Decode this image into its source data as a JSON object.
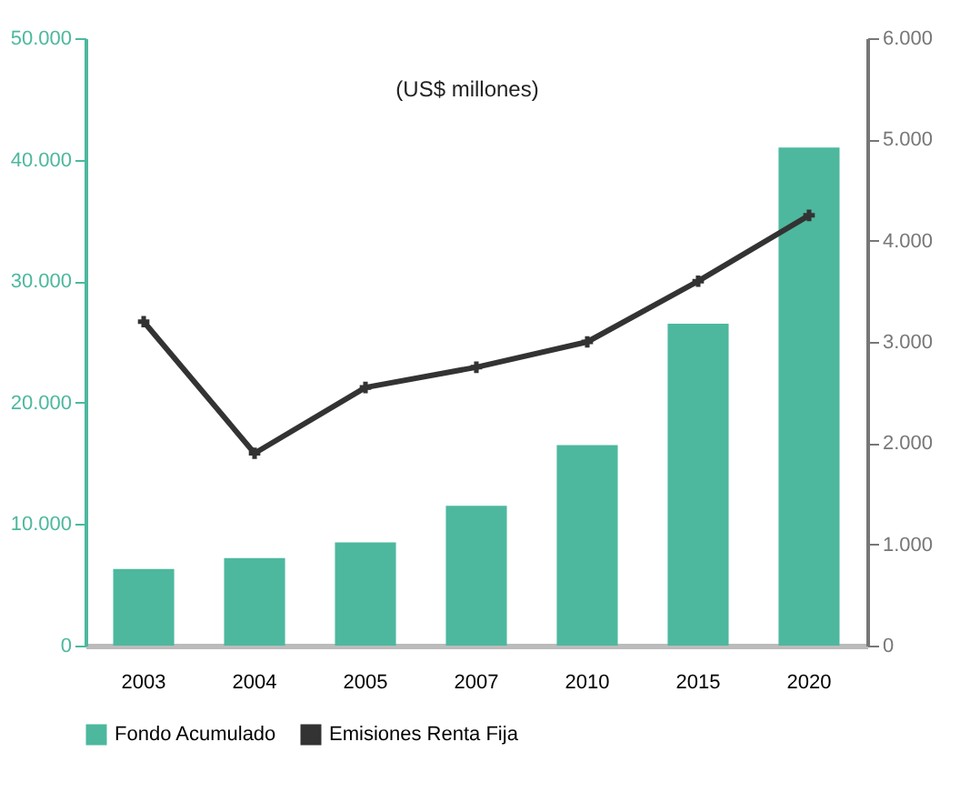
{
  "chart_data": {
    "type": "bar",
    "annotations": [
      "(US$ millones)"
    ],
    "categories": [
      "2003",
      "2004",
      "2005",
      "2007",
      "2010",
      "2015",
      "2020"
    ],
    "series": [
      {
        "name": "Fondo Acumulado",
        "color": "#4db89e",
        "values": [
          6300,
          7200,
          8500,
          11500,
          16500,
          26500,
          41000
        ]
      },
      {
        "name": "Emisiones Renta Fija",
        "type": "line",
        "axis": "y2",
        "color": "#333333",
        "marker": "cross",
        "values": [
          3200,
          1900,
          2550,
          2750,
          3000,
          3600,
          4250
        ]
      }
    ],
    "ylim": [
      0,
      50000
    ],
    "yticks": [
      0,
      {
        "value": 10000,
        "label": "10.000"
      },
      {
        "value": 20000,
        "label": "20.000"
      },
      {
        "value": 30000,
        "label": "30.000"
      },
      {
        "value": 40000,
        "label": "40.000"
      },
      {
        "value": 50000,
        "label": "50.000"
      }
    ],
    "y2lim": [
      0,
      6000
    ],
    "y2ticks": [
      0,
      {
        "value": 1000,
        "label": "1.000"
      },
      {
        "value": 2000,
        "label": "2.000"
      },
      {
        "value": 3000,
        "label": "3.000"
      },
      {
        "value": 4000,
        "label": "4.000"
      },
      {
        "value": 5000,
        "label": "5.000"
      },
      {
        "value": 6000,
        "label": "6.000"
      }
    ],
    "grid": false,
    "legend": "bottom"
  }
}
